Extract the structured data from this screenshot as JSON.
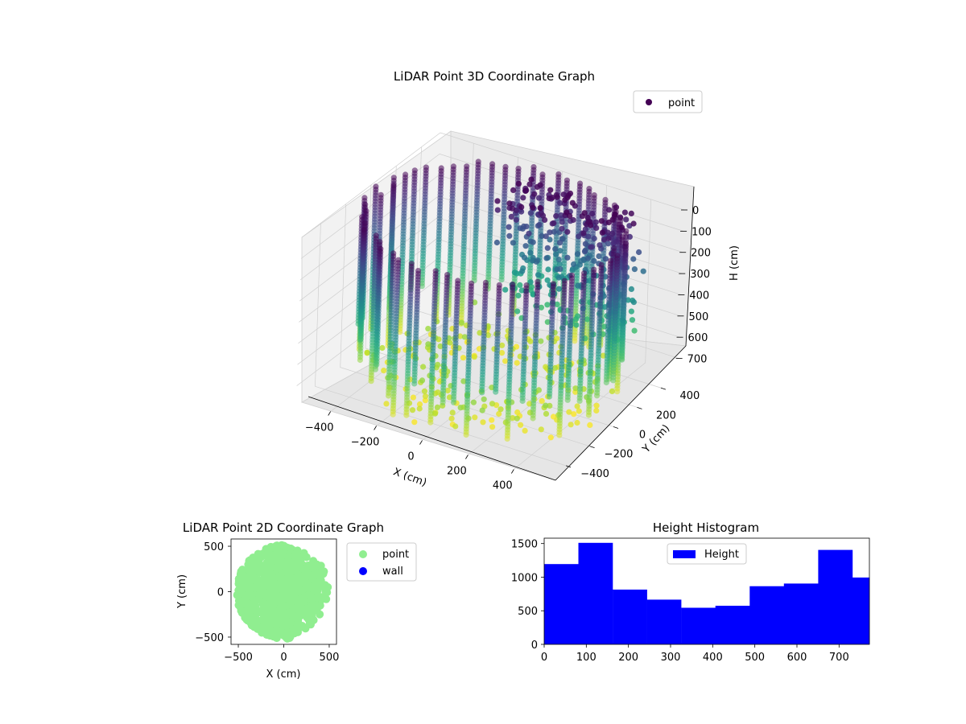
{
  "chart_data": [
    {
      "type": "scatter",
      "projection": "3d",
      "title": "LiDAR Point 3D Coordinate Graph",
      "xlabel": "X (cm)",
      "ylabel": "Y (cm)",
      "zlabel": "H (cm)",
      "xlim": [
        -550,
        550
      ],
      "ylim": [
        -550,
        550
      ],
      "zlim": [
        770,
        0
      ],
      "xticks": [
        "−400",
        "−200",
        "0",
        "200",
        "400"
      ],
      "yticks": [
        "−400",
        "−200",
        "0",
        "200",
        "400"
      ],
      "zticks": [
        "0",
        "100",
        "200",
        "300",
        "400",
        "500",
        "600",
        "700"
      ],
      "zscale_inverted": true,
      "colormap": "viridis",
      "color_by": "height",
      "legend": {
        "placement": "top-right",
        "entries": [
          {
            "label": "point",
            "color": "#440154"
          }
        ]
      },
      "series": [
        {
          "name": "point",
          "shape": "ring of vertical point columns (r≈520 cm) with a dense cluster near x≈100, y≈350",
          "ring_radius": 520,
          "columns_every_deg": 6,
          "column_bottom_height_range": [
            500,
            770
          ],
          "cluster": {
            "x_range": [
              -100,
              450
            ],
            "y_range": [
              200,
              450
            ],
            "h_range": [
              0,
              550
            ]
          }
        }
      ],
      "grid": true
    },
    {
      "type": "scatter",
      "title": "LiDAR Point 2D Coordinate Graph",
      "xlabel": "X (cm)",
      "ylabel": "Y (cm)",
      "xlim": [
        -580,
        580
      ],
      "ylim": [
        -580,
        580
      ],
      "xticks": [
        -500,
        0,
        500
      ],
      "yticks": [
        -500,
        0,
        500
      ],
      "xtick_labels": [
        "−500",
        "0",
        "500"
      ],
      "ytick_labels": [
        "−500",
        "0",
        "500"
      ],
      "legend": {
        "placement": "outside-right",
        "entries": [
          {
            "label": "point",
            "color": "#90ee90"
          },
          {
            "label": "wall",
            "color": "#0000ff"
          }
        ]
      },
      "series": [
        {
          "name": "point",
          "color": "#90ee90",
          "description": "filled disc of points radius≈520 cm with ragged right edge"
        },
        {
          "name": "wall",
          "color": "#0000ff",
          "values": []
        }
      ]
    },
    {
      "type": "bar",
      "subtype": "histogram",
      "title": "Height Histogram",
      "xlim": [
        0,
        772
      ],
      "ylim": [
        0,
        1580
      ],
      "xticks": [
        0,
        100,
        200,
        300,
        400,
        500,
        600,
        700
      ],
      "yticks": [
        0,
        500,
        1000,
        1500
      ],
      "bin_edges": [
        0,
        81.3,
        162.6,
        243.9,
        325.2,
        406.5,
        487.8,
        569.1,
        650.4,
        731.7,
        772
      ],
      "values": [
        1195,
        1510,
        815,
        665,
        545,
        575,
        865,
        905,
        1405,
        995
      ],
      "color": "#0000ff",
      "legend": {
        "placement": "upper-center",
        "entries": [
          {
            "label": "Height",
            "color": "#0000ff"
          }
        ]
      }
    }
  ]
}
